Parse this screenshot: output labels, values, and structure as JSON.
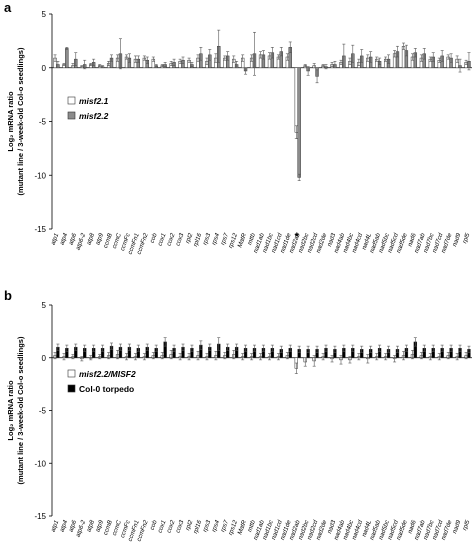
{
  "chart_data": [
    {
      "panel": "a",
      "type": "bar",
      "ylabel": "Log₂ mRNA ratio (mutant line / 3-week-old Col-o seedlings)",
      "ylabel_line1": "Log₂ mRNA ratio",
      "ylabel_line2": "(mutant line / 3-week-old Col-o seedlings)",
      "ylim": [
        -15,
        5
      ],
      "yticks": [
        "5",
        "0",
        "-5",
        "-10",
        "-15"
      ],
      "annotation": "*",
      "annotation_category": "nad2ab",
      "categories": [
        "atp1",
        "atp4",
        "atp6",
        "atp6-2",
        "atp8",
        "atp9",
        "ccmB",
        "ccmC",
        "ccmFc",
        "ccmFn1",
        "ccmFn2",
        "cob",
        "cox1",
        "cox2",
        "cox3",
        "rpl2",
        "rpl16",
        "rps3",
        "rps4",
        "rps7",
        "rps12",
        "MatR",
        "mttb",
        "nad1ab",
        "nad1bc",
        "nad1cd",
        "nad1de",
        "nad2ab",
        "nad2bc",
        "nad2cd",
        "nad2de",
        "nad3",
        "nad4ab",
        "nad4bc",
        "nad4cd",
        "nad4L",
        "nad5ab",
        "nad5bc",
        "nad5cd",
        "nad5de",
        "nad6",
        "nad7ab",
        "nad7bc",
        "nad7cd",
        "nad7de",
        "nad9",
        "rpl5"
      ],
      "series": [
        {
          "name": "misf2.1",
          "color": "#ffffff",
          "values": [
            0.9,
            0.3,
            0.2,
            0.1,
            0.3,
            0.2,
            0.4,
            0.9,
            1.0,
            0.8,
            0.9,
            0.8,
            0.2,
            0.4,
            0.6,
            0.7,
            0.9,
            0.6,
            0.9,
            0.9,
            0.8,
            0.9,
            0.9,
            1.2,
            1.1,
            1.0,
            1.0,
            -6.0,
            0.2,
            0.2,
            0.2,
            0.3,
            0.5,
            0.6,
            0.5,
            0.9,
            0.8,
            0.8,
            1.3,
            2.0,
            1.0,
            0.9,
            0.8,
            0.7,
            1.0,
            0.8,
            0.5
          ],
          "errors": [
            0.3,
            0.1,
            0.2,
            0.1,
            0.1,
            0.1,
            0.2,
            0.3,
            0.2,
            0.3,
            0.2,
            0.2,
            0.1,
            0.2,
            0.2,
            0.2,
            0.3,
            0.3,
            0.4,
            0.2,
            0.3,
            0.3,
            0.3,
            0.3,
            0.3,
            0.2,
            0.3,
            0.6,
            0.1,
            0.2,
            0.1,
            0.2,
            0.2,
            0.3,
            0.3,
            0.3,
            0.2,
            0.2,
            0.3,
            0.3,
            0.3,
            0.3,
            0.2,
            0.2,
            0.2,
            0.3,
            0.2
          ]
        },
        {
          "name": "misf2.2",
          "color": "#8c8c8c",
          "values": [
            0.3,
            1.8,
            0.8,
            0.3,
            0.5,
            0.1,
            0.9,
            1.3,
            0.9,
            0.8,
            0.7,
            0.2,
            0.3,
            0.5,
            0.7,
            0.3,
            1.3,
            1.2,
            2.0,
            1.1,
            0.3,
            -0.3,
            1.3,
            1.2,
            1.4,
            1.5,
            1.9,
            -10.2,
            -0.3,
            -0.8,
            0.1,
            0.3,
            1.1,
            1.3,
            1.1,
            1.0,
            0.6,
            0.8,
            1.5,
            1.6,
            1.4,
            1.3,
            1.0,
            1.1,
            0.9,
            0.2,
            0.6
          ],
          "errors": [
            0.3,
            0.1,
            0.6,
            0.4,
            0.3,
            0.1,
            0.3,
            1.4,
            0.4,
            0.3,
            0.3,
            0.1,
            0.2,
            0.3,
            0.3,
            0.2,
            0.6,
            0.5,
            1.5,
            0.4,
            0.3,
            0.3,
            2.0,
            0.4,
            0.5,
            0.4,
            0.5,
            0.3,
            0.4,
            0.6,
            0.2,
            0.3,
            1.1,
            0.8,
            0.6,
            0.5,
            0.3,
            0.4,
            0.5,
            0.5,
            0.4,
            0.5,
            0.4,
            0.5,
            0.4,
            0.6,
            0.8
          ]
        }
      ],
      "legend_position": "left"
    },
    {
      "panel": "b",
      "type": "bar",
      "ylabel": "Log₂ mRNA ratio (mutant line / 3-week-old Col-o seedlings)",
      "ylabel_line1": "Log₂ mRNA ratio",
      "ylabel_line2": "(mutant line / 3-week-old Col-o seedlings)",
      "ylim": [
        -15,
        5
      ],
      "yticks": [
        "5",
        "0",
        "-5",
        "-10",
        "-15"
      ],
      "categories": [
        "atp1",
        "atp4",
        "atp6",
        "atp6-2",
        "atp8",
        "atp9",
        "ccmB",
        "ccmC",
        "ccmFc",
        "ccmFn1",
        "ccmFn2",
        "cob",
        "cox1",
        "cox2",
        "cox3",
        "rpl2",
        "rpl16",
        "rps3",
        "rps4",
        "rps7",
        "rps12",
        "MatR",
        "mttb",
        "nad1ab",
        "nad1bc",
        "nad1cd",
        "nad1de",
        "nad2ab",
        "nad2bc",
        "nad2cd",
        "nad2de",
        "nad3",
        "nad4ab",
        "nad4bc",
        "nad4cd",
        "nad4L",
        "nad5ab",
        "nad5bc",
        "nad5cd",
        "nad5de",
        "nad6",
        "nad7ab",
        "nad7bc",
        "nad7cd",
        "nad7de",
        "nad9",
        "rpl5"
      ],
      "series": [
        {
          "name": "misf2.2/MISF2",
          "color": "#ffffff",
          "values": [
            0.2,
            0.1,
            0.1,
            -0.1,
            0.0,
            0.1,
            0.2,
            0.3,
            0.1,
            0.1,
            0.1,
            0.2,
            0.2,
            0.3,
            0.1,
            0.1,
            0.2,
            0.1,
            0.2,
            0.2,
            0.3,
            0.1,
            0.1,
            0.1,
            0.1,
            0.1,
            0.2,
            -1.0,
            -0.4,
            -0.3,
            0.1,
            -0.1,
            -0.2,
            -0.2,
            0.1,
            -0.1,
            0.1,
            0.1,
            -0.1,
            0.2,
            0.3,
            0.2,
            0.1,
            0.1,
            0.2,
            0.1,
            0.2
          ],
          "errors": [
            0.3,
            0.3,
            0.2,
            0.2,
            0.2,
            0.2,
            0.3,
            0.4,
            0.3,
            0.3,
            0.3,
            0.3,
            0.3,
            0.4,
            0.3,
            0.3,
            0.4,
            0.3,
            0.4,
            0.3,
            0.4,
            0.3,
            0.3,
            0.3,
            0.3,
            0.3,
            0.3,
            0.5,
            0.4,
            0.5,
            0.3,
            0.3,
            0.4,
            0.3,
            0.3,
            0.4,
            0.3,
            0.3,
            0.3,
            0.4,
            0.4,
            0.3,
            0.3,
            0.3,
            0.3,
            0.3,
            0.3
          ]
        },
        {
          "name": "Col-0 torpedo",
          "color": "#000000",
          "values": [
            1.0,
            0.9,
            1.0,
            0.9,
            0.9,
            0.9,
            1.1,
            1.0,
            1.0,
            0.9,
            1.0,
            0.9,
            1.5,
            0.9,
            1.0,
            0.9,
            1.2,
            1.0,
            1.3,
            1.0,
            1.0,
            0.9,
            0.9,
            0.9,
            0.9,
            0.8,
            0.9,
            0.8,
            0.8,
            0.8,
            0.9,
            0.8,
            0.9,
            0.9,
            0.8,
            0.8,
            0.9,
            0.8,
            0.8,
            0.9,
            1.5,
            0.9,
            0.9,
            0.9,
            0.9,
            0.9,
            0.8
          ],
          "errors": [
            0.3,
            0.3,
            0.3,
            0.3,
            0.3,
            0.3,
            0.3,
            0.3,
            0.3,
            0.3,
            0.3,
            0.3,
            0.4,
            0.3,
            0.3,
            0.3,
            0.4,
            0.3,
            0.6,
            0.3,
            0.3,
            0.3,
            0.3,
            0.3,
            0.3,
            0.3,
            0.3,
            0.3,
            0.3,
            0.3,
            0.3,
            0.3,
            0.3,
            0.3,
            0.3,
            0.3,
            0.3,
            0.3,
            0.3,
            0.3,
            0.4,
            0.3,
            0.3,
            0.3,
            0.3,
            0.3,
            0.3
          ]
        }
      ],
      "legend_position": "left"
    }
  ]
}
